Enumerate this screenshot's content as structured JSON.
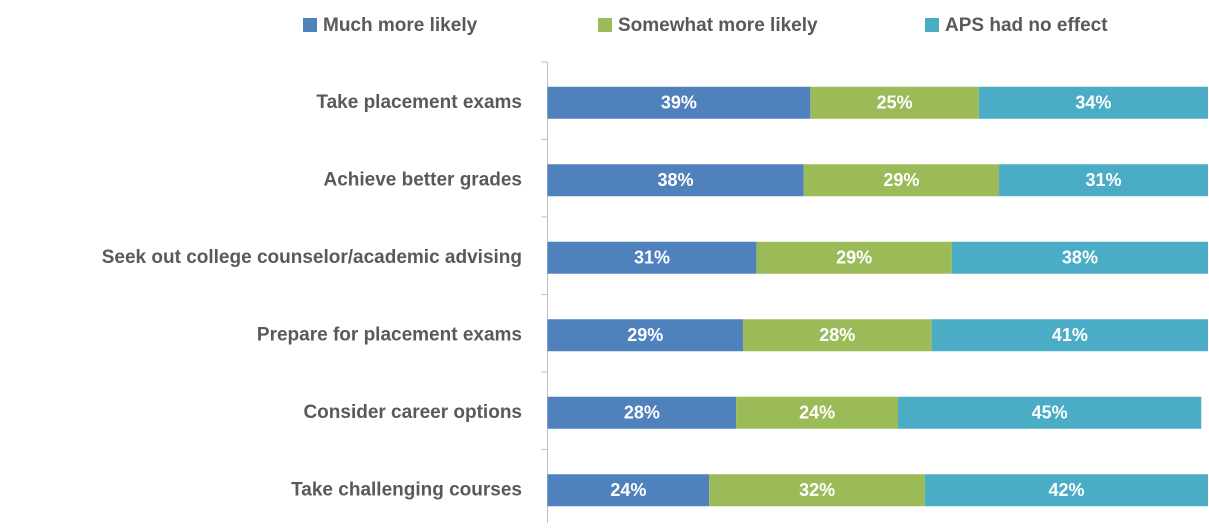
{
  "chart_data": {
    "type": "stacked-barh",
    "categories": [
      "Take placement exams",
      "Achieve better grades",
      "Seek out college counselor/academic advising",
      "Prepare for placement exams",
      "Consider career options",
      "Take challenging courses"
    ],
    "series": [
      {
        "name": "Much more likely",
        "color": "#4f81bd",
        "values": [
          39,
          38,
          31,
          29,
          28,
          24
        ],
        "value_labels": [
          "39%",
          "38%",
          "31%",
          "29%",
          "28%",
          "24%"
        ]
      },
      {
        "name": "Somewhat more likely",
        "color": "#9bbb59",
        "values": [
          25,
          29,
          29,
          28,
          24,
          32
        ],
        "value_labels": [
          "25%",
          "29%",
          "29%",
          "28%",
          "24%",
          "32%"
        ]
      },
      {
        "name": "APS had no effect",
        "color": "#4bacc6",
        "values": [
          34,
          31,
          38,
          41,
          45,
          42
        ],
        "value_labels": [
          "34%",
          "31%",
          "38%",
          "41%",
          "45%",
          "42%"
        ]
      }
    ],
    "xlim": [
      0,
      98
    ],
    "legend": "top"
  }
}
